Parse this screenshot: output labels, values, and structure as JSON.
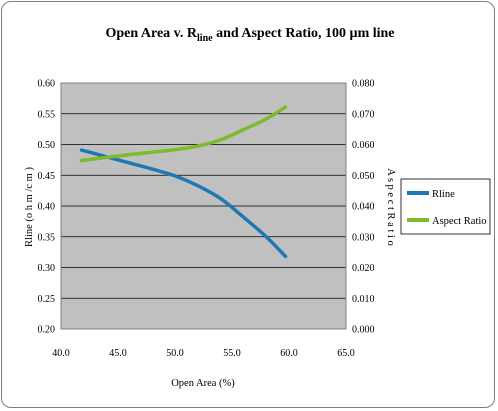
{
  "chart_data": {
    "type": "line",
    "title": {
      "pre": "Open Area v. R",
      "sub": "line",
      "post": " and Aspect Ratio, 100 ",
      "mu": "µ",
      "unit": "m line"
    },
    "xlabel": "Open Area (%)",
    "ylabel_left": "Rline (o h m /c m )",
    "ylabel_right": "A s p e c t  R a t i o",
    "xlim": [
      40.0,
      65.0
    ],
    "ylim_left": [
      0.2,
      0.6
    ],
    "ylim_right": [
      0.0,
      0.08
    ],
    "x_ticks": [
      "40.0",
      "45.0",
      "50.0",
      "55.0",
      "60.0",
      "65.0"
    ],
    "y_ticks_left": [
      "0.60",
      "0.55",
      "0.50",
      "0.45",
      "0.40",
      "0.35",
      "0.30",
      "0.25",
      "0.20"
    ],
    "y_ticks_right": [
      "0.080",
      "0.070",
      "0.060",
      "0.050",
      "0.040",
      "0.030",
      "0.020",
      "0.010",
      "0.000"
    ],
    "grid": "horizontal",
    "plot_background": "#c0c0c0",
    "legend_position": "right",
    "series": [
      {
        "name": "Rline",
        "axis": "left",
        "color": "#1f77b4",
        "x": [
          41.8,
          44.0,
          46.0,
          48.0,
          50.0,
          52.0,
          54.0,
          56.0,
          58.0,
          59.7
        ],
        "values": [
          0.491,
          0.48,
          0.47,
          0.46,
          0.449,
          0.433,
          0.412,
          0.382,
          0.35,
          0.318
        ]
      },
      {
        "name": "Aspect Ratio",
        "axis": "right",
        "color": "#7dbb2a",
        "x": [
          41.8,
          44.0,
          46.0,
          48.0,
          50.0,
          52.0,
          54.0,
          56.0,
          58.0,
          59.7
        ],
        "values": [
          0.0548,
          0.0558,
          0.0567,
          0.0575,
          0.0583,
          0.0595,
          0.0615,
          0.0648,
          0.0683,
          0.0722
        ]
      }
    ]
  }
}
